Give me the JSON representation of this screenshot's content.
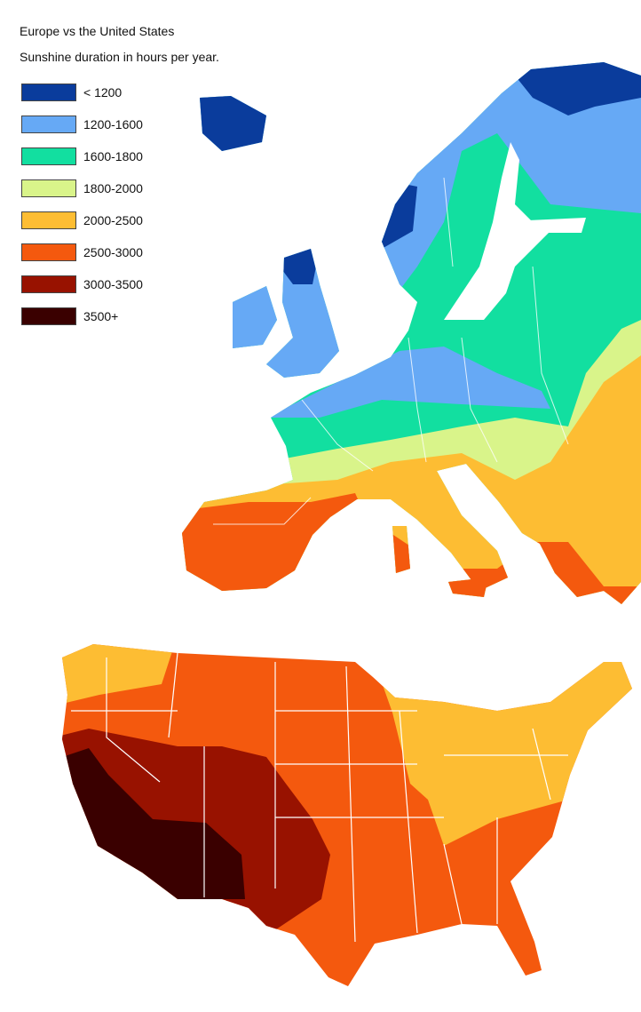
{
  "title": "Europe vs the United States",
  "subtitle": "Sunshine duration in hours per year.",
  "legend": [
    {
      "label": "< 1200",
      "color": "#0a3c9c"
    },
    {
      "label": "1200-1600",
      "color": "#66a9f5"
    },
    {
      "label": "1600-1800",
      "color": "#12dfa0"
    },
    {
      "label": "1800-2000",
      "color": "#d9f48a"
    },
    {
      "label": "2000-2500",
      "color": "#fdbd33"
    },
    {
      "label": "2500-3000",
      "color": "#f4590e"
    },
    {
      "label": "3000-3500",
      "color": "#981200"
    },
    {
      "label": "3500+",
      "color": "#3a0000"
    }
  ]
}
